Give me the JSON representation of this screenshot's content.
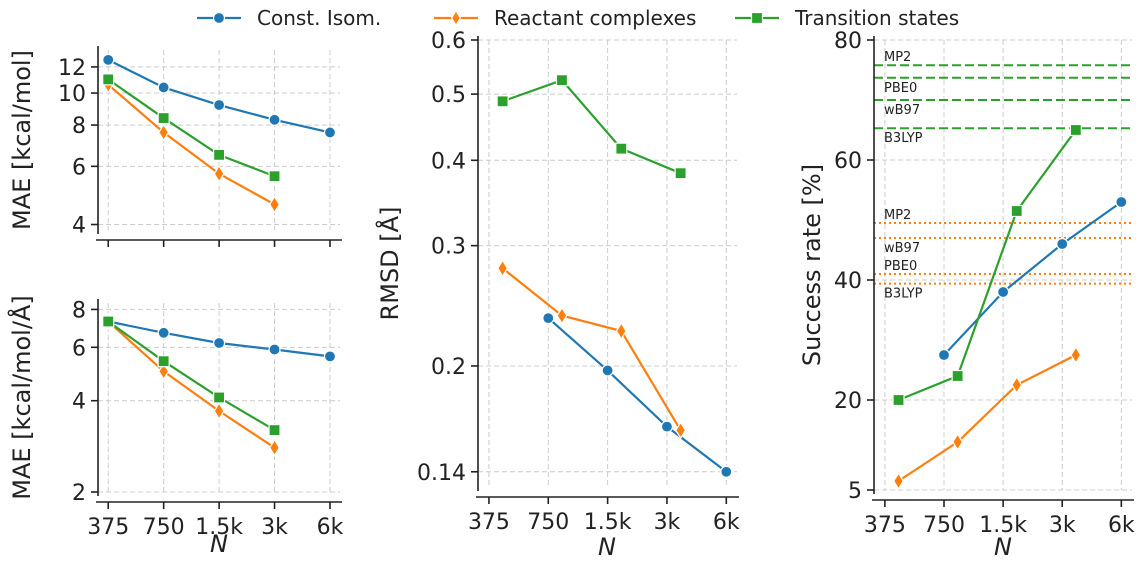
{
  "legend": [
    {
      "name": "Const. Isom.",
      "color": "#1f77b4",
      "marker": "circle"
    },
    {
      "name": "Reactant complexes",
      "color": "#ff7f0e",
      "marker": "diamond"
    },
    {
      "name": "Transition states",
      "color": "#2ca02c",
      "marker": "square"
    }
  ],
  "chart_data": [
    {
      "type": "line",
      "panel": "top-left",
      "xlabel": "",
      "ylabel": "MAE [kcal/mol]",
      "xscale": "log",
      "yscale": "log",
      "xlim": [
        330,
        6800
      ],
      "ylim": [
        3.85,
        13.5
      ],
      "xticks": [
        375,
        750,
        1500,
        3000,
        6000
      ],
      "xticklabels": [
        "375",
        "750",
        "1.5k",
        "3k",
        "6k"
      ],
      "show_xticklabels": false,
      "yticks": [
        4,
        6,
        8,
        10,
        12
      ],
      "yticklabels": [
        "4",
        "6",
        "8",
        "10",
        "12"
      ],
      "grid": true,
      "series": [
        {
          "name": "Const. Isom.",
          "x": [
            375,
            750,
            1500,
            3000,
            6000
          ],
          "y": [
            12.6,
            10.4,
            9.2,
            8.3,
            7.6
          ]
        },
        {
          "name": "Reactant complexes",
          "x": [
            375,
            750,
            1500,
            3000
          ],
          "y": [
            10.6,
            7.6,
            5.7,
            4.6
          ]
        },
        {
          "name": "Transition states",
          "x": [
            375,
            750,
            1500,
            3000
          ],
          "y": [
            11.0,
            8.4,
            6.5,
            5.6
          ]
        }
      ]
    },
    {
      "type": "line",
      "panel": "bottom-left",
      "xlabel": "N",
      "ylabel": "MAE [kcal/mol/Å]",
      "xscale": "log",
      "yscale": "log",
      "xlim": [
        330,
        6800
      ],
      "ylim": [
        2.0,
        8.4
      ],
      "xticks": [
        375,
        750,
        1500,
        3000,
        6000
      ],
      "xticklabels": [
        "375",
        "750",
        "1.5k",
        "3k",
        "6k"
      ],
      "show_xticklabels": true,
      "yticks": [
        2,
        4,
        6,
        8
      ],
      "yticklabels": [
        "2",
        "4",
        "6",
        "8"
      ],
      "grid": true,
      "series": [
        {
          "name": "Const. Isom.",
          "x": [
            375,
            750,
            1500,
            3000,
            6000
          ],
          "y": [
            7.3,
            6.7,
            6.2,
            5.9,
            5.6
          ]
        },
        {
          "name": "Reactant complexes",
          "x": [
            375,
            750,
            1500,
            3000
          ],
          "y": [
            7.3,
            5.0,
            3.7,
            2.8
          ]
        },
        {
          "name": "Transition states",
          "x": [
            375,
            750,
            1500,
            3000
          ],
          "y": [
            7.3,
            5.4,
            4.1,
            3.2
          ]
        }
      ]
    },
    {
      "type": "line",
      "panel": "middle",
      "xlabel": "N",
      "ylabel": "RMSD [Å]",
      "xscale": "log",
      "yscale": "log",
      "xlim": [
        330,
        6800
      ],
      "ylim": [
        0.133,
        0.6
      ],
      "xticks": [
        375,
        750,
        1500,
        3000,
        6000
      ],
      "xticklabels": [
        "375",
        "750",
        "1.5k",
        "3k",
        "6k"
      ],
      "show_xticklabels": true,
      "yticks": [
        0.14,
        0.2,
        0.3,
        0.4,
        0.5,
        0.6
      ],
      "yticklabels": [
        "0.14",
        "0.2",
        "0.3",
        "0.4",
        "0.5",
        "0.6"
      ],
      "grid": true,
      "series": [
        {
          "name": "Const. Isom.",
          "x": [
            750,
            1500,
            3000,
            6000
          ],
          "y": [
            0.235,
            0.197,
            0.163,
            0.14
          ]
        },
        {
          "name": "Reactant complexes",
          "x": [
            440,
            880,
            1760,
            3520
          ],
          "y": [
            0.278,
            0.237,
            0.225,
            0.161
          ]
        },
        {
          "name": "Transition states",
          "x": [
            440,
            880,
            1760,
            3520
          ],
          "y": [
            0.488,
            0.524,
            0.416,
            0.383
          ]
        }
      ]
    },
    {
      "type": "line",
      "panel": "right",
      "xlabel": "N",
      "ylabel": "Success rate [%]",
      "xscale": "log",
      "yscale": "linear",
      "xlim": [
        330,
        6800
      ],
      "ylim": [
        5,
        80
      ],
      "xticks": [
        375,
        750,
        1500,
        3000,
        6000
      ],
      "xticklabels": [
        "375",
        "750",
        "1.5k",
        "3k",
        "6k"
      ],
      "show_xticklabels": true,
      "yticks": [
        5,
        20,
        40,
        60,
        80
      ],
      "yticklabels": [
        "5",
        "20",
        "40",
        "60",
        "80"
      ],
      "grid": true,
      "series": [
        {
          "name": "Const. Isom.",
          "x": [
            750,
            1500,
            3000,
            6000
          ],
          "y": [
            27.5,
            38.0,
            46.0,
            53.0
          ]
        },
        {
          "name": "Reactant complexes",
          "x": [
            440,
            880,
            1760,
            3520
          ],
          "y": [
            6.5,
            13.0,
            22.5,
            27.5
          ]
        },
        {
          "name": "Transition states",
          "x": [
            440,
            880,
            1760,
            3520
          ],
          "y": [
            20.0,
            24.0,
            51.5,
            65.0
          ]
        }
      ],
      "reference_lines": [
        {
          "label": "MP2",
          "y": 75.8,
          "color": "#2ca02c",
          "style": "dashed",
          "label_pos": "above"
        },
        {
          "label": "PBE0",
          "y": 73.7,
          "color": "#2ca02c",
          "style": "dashed",
          "label_pos": "below"
        },
        {
          "label": "wB97",
          "y": 70.0,
          "color": "#2ca02c",
          "style": "dashed",
          "label_pos": "below"
        },
        {
          "label": "B3LYP",
          "y": 65.3,
          "color": "#2ca02c",
          "style": "dashed",
          "label_pos": "below"
        },
        {
          "label": "MP2",
          "y": 49.5,
          "color": "#ff7f0e",
          "style": "dotted",
          "label_pos": "above"
        },
        {
          "label": "wB97",
          "y": 47.0,
          "color": "#ff7f0e",
          "style": "dotted",
          "label_pos": "below"
        },
        {
          "label": "PBE0",
          "y": 41.0,
          "color": "#ff7f0e",
          "style": "dotted",
          "label_pos": "above"
        },
        {
          "label": "B3LYP",
          "y": 39.4,
          "color": "#ff7f0e",
          "style": "dotted",
          "label_pos": "below"
        }
      ]
    }
  ]
}
